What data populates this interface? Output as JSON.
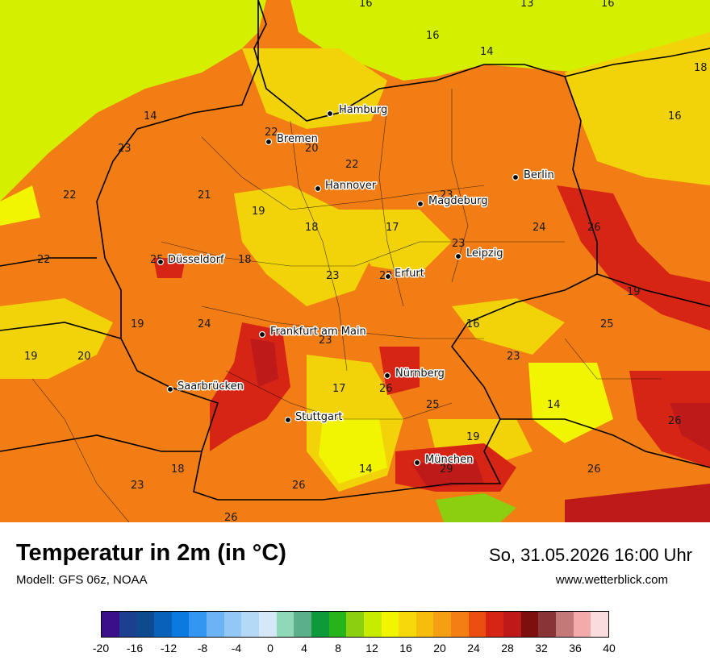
{
  "title": "Temperatur in 2m (in °C)",
  "model": "Modell: GFS 06z, NOAA",
  "datetime": "So, 31.05.2026 16:00 Uhr",
  "website": "www.wetterblick.com",
  "legend": {
    "ticks": [
      "-20",
      "-16",
      "-12",
      "-8",
      "-4",
      "0",
      "4",
      "8",
      "12",
      "16",
      "20",
      "24",
      "28",
      "32",
      "36",
      "40"
    ],
    "colors": [
      "#3b0e8a",
      "#1d3f8f",
      "#0e4a8e",
      "#0a62b8",
      "#0a7ae0",
      "#3396f0",
      "#6cb3f5",
      "#93c8f6",
      "#b4d9f7",
      "#d4e8f8",
      "#8fd8b8",
      "#5bb08a",
      "#0e9a3a",
      "#25b51b",
      "#8ccf10",
      "#c8ec00",
      "#f2f500",
      "#f5d90a",
      "#f6bd0d",
      "#f4a012",
      "#f37f14",
      "#ec4e12",
      "#d62415",
      "#bf1a1a",
      "#7e0f0f",
      "#8a3535",
      "#c47979",
      "#f3aaaa",
      "#fbdcdc"
    ]
  },
  "cities": [
    {
      "name": "Hamburg"
    },
    {
      "name": "Bremen"
    },
    {
      "name": "Hannover"
    },
    {
      "name": "Berlin"
    },
    {
      "name": "Magdeburg"
    },
    {
      "name": "Düsseldorf"
    },
    {
      "name": "Leipzig"
    },
    {
      "name": "Erfurt"
    },
    {
      "name": "Frankfurt am Main"
    },
    {
      "name": "Nürnberg"
    },
    {
      "name": "Saarbrücken"
    },
    {
      "name": "Stuttgart"
    },
    {
      "name": "München"
    }
  ],
  "values": [
    "16",
    "13",
    "16",
    "16",
    "14",
    "18",
    "14",
    "16",
    "22",
    "20",
    "23",
    "22",
    "21",
    "22",
    "19",
    "18",
    "24",
    "26",
    "17",
    "23",
    "18",
    "23",
    "22",
    "25",
    "22",
    "19",
    "24",
    "23",
    "16",
    "19",
    "20",
    "25",
    "23",
    "26",
    "23",
    "19",
    "17",
    "25",
    "14",
    "26",
    "18",
    "23",
    "26",
    "19",
    "14",
    "29",
    "26",
    "26"
  ]
}
